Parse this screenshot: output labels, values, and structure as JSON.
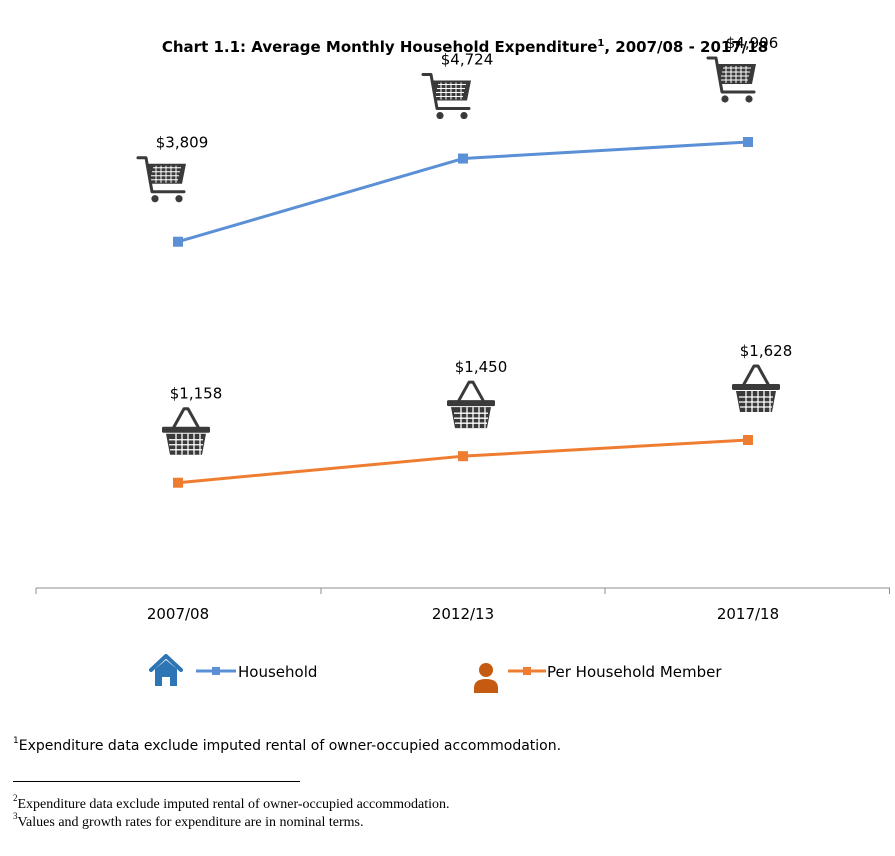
{
  "colors": {
    "household": "#5b8fd6",
    "member": "#ef7d31",
    "house_icon": "#2e75b6",
    "person_icon": "#c55a11",
    "axis": "#8c8c8c",
    "icon_dark": "#3a3a3a"
  },
  "chart_data": {
    "type": "line",
    "title": "Chart 1.1: Average Monthly Household Expenditure",
    "title_sup": "1",
    "title_suffix": ", 2007/08 - 2017/18",
    "categories": [
      "2007/08",
      "2012/13",
      "2017/18"
    ],
    "ylim": [
      0,
      5500
    ],
    "series": [
      {
        "name": "Household",
        "values": [
          3809,
          4724,
          4906
        ],
        "labels": [
          "$3,809",
          "$4,724",
          "$4,906"
        ],
        "icon": "shopping-cart-icon"
      },
      {
        "name": "Per Household Member",
        "values": [
          1158,
          1450,
          1628
        ],
        "labels": [
          "$1,158",
          "$1,450",
          "$1,628"
        ],
        "icon": "shopping-basket-icon"
      }
    ],
    "legend": [
      {
        "label": "Household",
        "icon": "house-icon"
      },
      {
        "label": "Per Household Member",
        "icon": "person-icon"
      }
    ]
  },
  "footnotes": {
    "note1_sup": "1",
    "note1": "Expenditure data exclude imputed rental of owner-occupied accommodation.",
    "note2_sup": "2",
    "note2": "Expenditure data exclude imputed rental of owner-occupied accommodation.",
    "note3_sup": "3",
    "note3": "Values and growth rates for expenditure are in nominal terms."
  }
}
